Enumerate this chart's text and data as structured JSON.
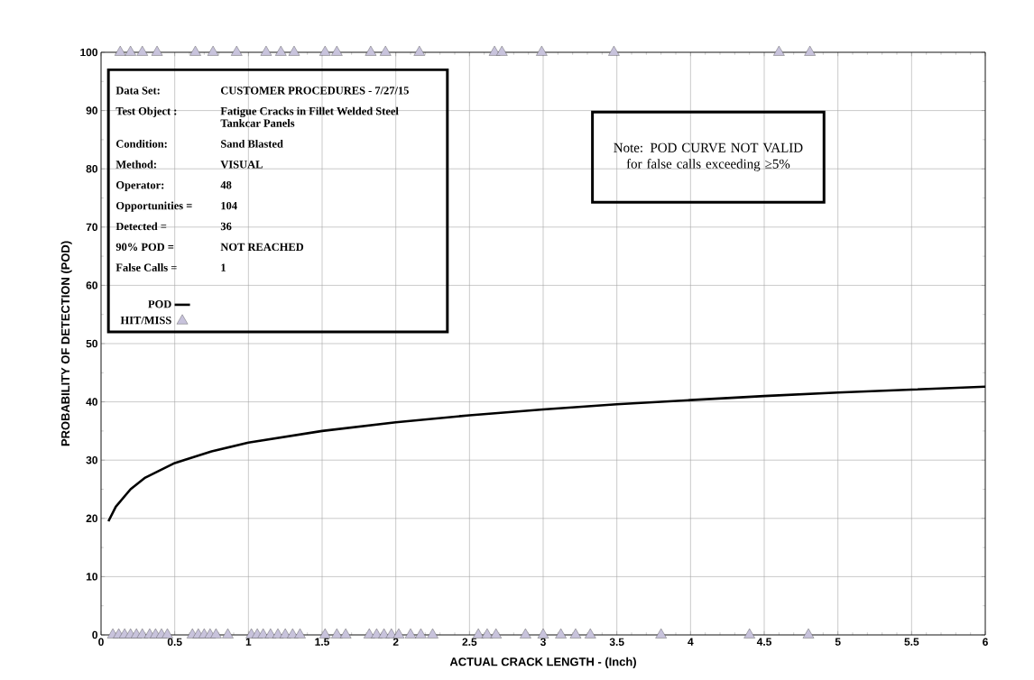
{
  "chart_data": {
    "type": "scatter",
    "xlabel": "ACTUAL CRACK LENGTH - (Inch)",
    "ylabel": "PROBABILITY OF DETECTION    (POD)",
    "xlim": [
      0,
      6
    ],
    "ylim": [
      0,
      100
    ],
    "xticks": [
      0,
      0.5,
      1,
      1.5,
      2,
      2.5,
      3,
      3.5,
      4,
      4.5,
      5,
      5.5,
      6
    ],
    "yticks": [
      0,
      10,
      20,
      30,
      40,
      50,
      60,
      70,
      80,
      90,
      100
    ],
    "grid": true,
    "legend": "top left",
    "annotations": [
      "Data Set:",
      "CUSTOMER PROCEDURES - 7/27/15",
      "Test Object :",
      "Fatigue Cracks in Fillet Welded Steel Tankcar Panels",
      "Condition:",
      "Sand Blasted",
      "Method:",
      "VISUAL",
      "Operator:",
      "48",
      "Opportunities =",
      "104",
      "Detected =",
      "36",
      "90% POD =",
      "NOT REACHED",
      "False Calls =",
      "1",
      "Note: POD CURVE NOT VALID for false calls exceeding ≥5%"
    ],
    "series": [
      {
        "name": "POD",
        "type": "line",
        "color": "#000000",
        "marker": "none",
        "x": [
          0.05,
          0.1,
          0.2,
          0.3,
          0.5,
          0.75,
          1,
          1.5,
          2,
          2.5,
          3,
          3.5,
          4,
          4.5,
          5,
          5.5,
          6
        ],
        "values": [
          19.5,
          22,
          25,
          27,
          29.5,
          31.5,
          33,
          35,
          36.5,
          37.7,
          38.7,
          39.6,
          40.3,
          41,
          41.6,
          42.1,
          42.6
        ]
      },
      {
        "name": "HIT/MISS",
        "color": "#c8c3dc",
        "marker": "triangle",
        "x": [
          0.13,
          0.2,
          0.28,
          0.38,
          0.64,
          0.76,
          0.92,
          1.12,
          1.22,
          1.31,
          1.52,
          1.6,
          1.83,
          1.93,
          2.16,
          2.67,
          2.72,
          2.99,
          3.48,
          4.6,
          4.81
        ],
        "values": [
          100,
          100,
          100,
          100,
          100,
          100,
          100,
          100,
          100,
          100,
          100,
          100,
          100,
          100,
          100,
          100,
          100,
          100,
          100,
          100,
          100
        ]
      },
      {
        "color": "#c8c3dc",
        "marker": "triangle",
        "x": [
          0.08,
          0.12,
          0.16,
          0.2,
          0.24,
          0.28,
          0.33,
          0.37,
          0.41,
          0.45,
          0.62,
          0.66,
          0.7,
          0.74,
          0.78,
          0.86,
          1.02,
          1.06,
          1.1,
          1.15,
          1.2,
          1.25,
          1.3,
          1.35,
          1.52,
          1.6,
          1.66,
          1.82,
          1.87,
          1.92,
          1.97,
          2.02,
          2.1,
          2.17,
          2.25,
          2.56,
          2.62,
          2.68,
          2.88,
          3.0,
          3.12,
          3.22,
          3.32,
          3.8,
          4.4,
          4.8
        ],
        "values": [
          0,
          0,
          0,
          0,
          0,
          0,
          0,
          0,
          0,
          0,
          0,
          0,
          0,
          0,
          0,
          0,
          0,
          0,
          0,
          0,
          0,
          0,
          0,
          0,
          0,
          0,
          0,
          0,
          0,
          0,
          0,
          0,
          0,
          0,
          0,
          0,
          0,
          0,
          0,
          0,
          0,
          0,
          0,
          0,
          0,
          0
        ]
      }
    ]
  }
}
